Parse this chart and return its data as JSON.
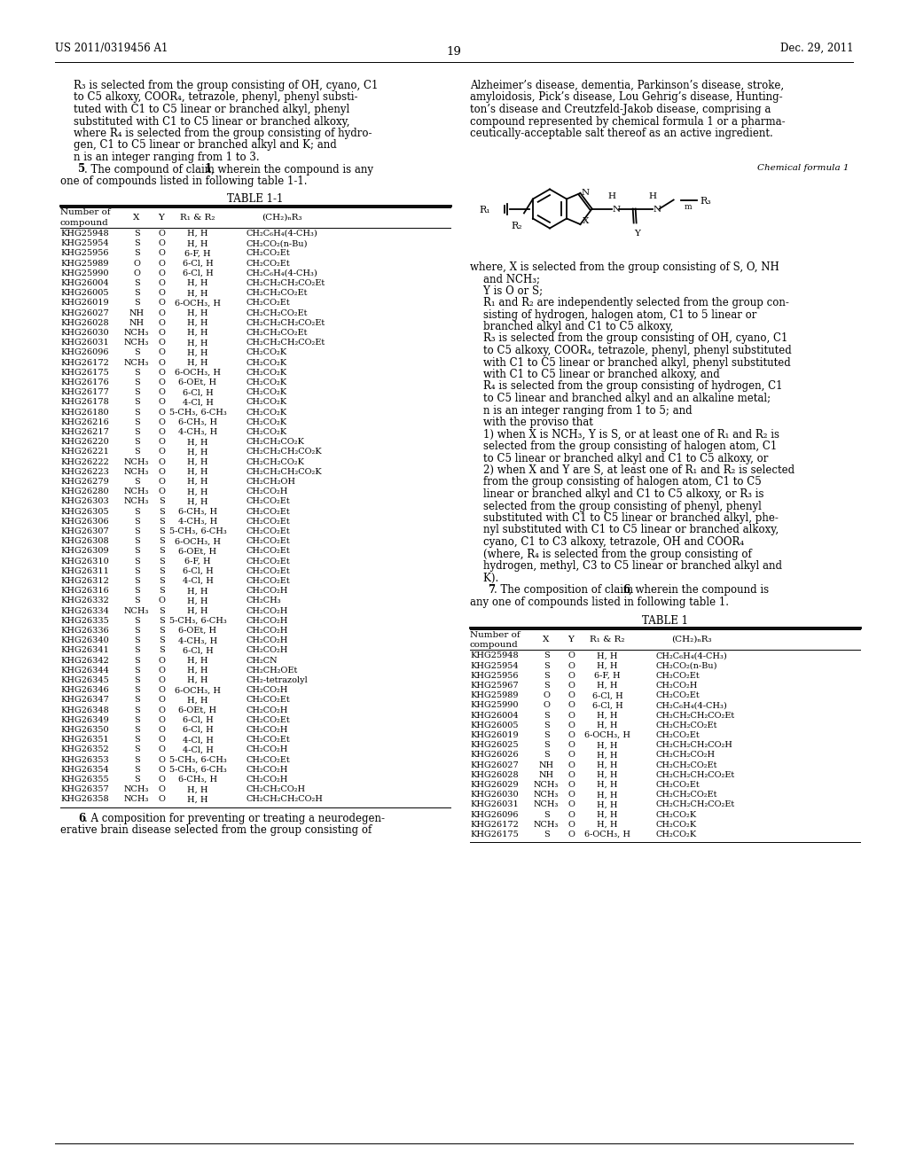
{
  "page_number": "19",
  "patent_number": "US 2011/0319456 A1",
  "date": "Dec. 29, 2011",
  "left_lines": [
    "    R₃ is selected from the group consisting of OH, cyano, C1",
    "    to C5 alkoxy, COOR₄, tetrazole, phenyl, phenyl substi-",
    "    tuted with C1 to C5 linear or branched alkyl, phenyl",
    "    substituted with C1 to C5 linear or branched alkoxy,",
    "    where R₄ is selected from the group consisting of hydro-",
    "    gen, C1 to C5 linear or branched alkyl and K; and",
    "    n is an integer ranging from 1 to 3.",
    "    5. The compound of claim 1, wherein the compound is any",
    "one of compounds listed in following table 1-1."
  ],
  "right_lines_top": [
    "Alzheimer’s disease, dementia, Parkinson’s disease, stroke,",
    "amyloidosis, Pick’s disease, Lou Gehrig’s disease, Hunting-",
    "ton’s disease and Creutzfeld-Jakob disease, comprising a",
    "compound represented by chemical formula 1 or a pharma-",
    "ceutically-acceptable salt thereof as an active ingredient."
  ],
  "right_desc_lines": [
    "where, X is selected from the group consisting of S, O, NH",
    "    and NCH₃;",
    "    Y is O or S;",
    "    R₁ and R₂ are independently selected from the group con-",
    "    sisting of hydrogen, halogen atom, C1 to 5 linear or",
    "    branched alkyl and C1 to C5 alkoxy,",
    "    R₃ is selected from the group consisting of OH, cyano, C1",
    "    to C5 alkoxy, COOR₄, tetrazole, phenyl, phenyl substituted",
    "    with C1 to C5 linear or branched alkyl, phenyl substituted",
    "    with C1 to C5 linear or branched alkoxy, and",
    "    R₄ is selected from the group consisting of hydrogen, C1",
    "    to C5 linear and branched alkyl and an alkaline metal;",
    "    n is an integer ranging from 1 to 5; and",
    "    with the proviso that",
    "    1) when X is NCH₃, Y is S, or at least one of R₁ and R₂ is",
    "    selected from the group consisting of halogen atom, C1",
    "    to C5 linear or branched alkyl and C1 to C5 alkoxy, or",
    "    2) when X and Y are S, at least one of R₁ and R₂ is selected",
    "    from the group consisting of halogen atom, C1 to C5",
    "    linear or branched alkyl and C1 to C5 alkoxy, or R₃ is",
    "    selected from the group consisting of phenyl, phenyl",
    "    substituted with C1 to C5 linear or branched alkyl, phe-",
    "    nyl substituted with C1 to C5 linear or branched alkoxy,",
    "    cyano, C1 to C3 alkoxy, tetrazole, OH and COOR₄",
    "    (where, R₄ is selected from the group consisting of",
    "    hydrogen, methyl, C3 to C5 linear or branched alkyl and",
    "    K).",
    "    7. The composition of claim 6, wherein the compound is",
    "any one of compounds listed in following table 1."
  ],
  "claim6_lines": [
    "    6. A composition for preventing or treating a neurodegen-",
    "erative brain disease selected from the group consisting of"
  ],
  "table1_data": [
    [
      "KHG25948",
      "S",
      "O",
      "H, H",
      "CH₂C₆H₄(4-CH₃)"
    ],
    [
      "KHG25954",
      "S",
      "O",
      "H, H",
      "CH₂CO₂(n-Bu)"
    ],
    [
      "KHG25956",
      "S",
      "O",
      "6-F, H",
      "CH₂CO₂Et"
    ],
    [
      "KHG25989",
      "O",
      "O",
      "6-Cl, H",
      "CH₂CO₂Et"
    ],
    [
      "KHG25990",
      "O",
      "O",
      "6-Cl, H",
      "CH₂C₆H₄(4-CH₃)"
    ],
    [
      "KHG26004",
      "S",
      "O",
      "H, H",
      "CH₂CH₂CH₂CO₂Et"
    ],
    [
      "KHG26005",
      "S",
      "O",
      "H, H",
      "CH₂CH₂CO₂Et"
    ],
    [
      "KHG26019",
      "S",
      "O",
      "6-OCH₃, H",
      "CH₂CO₂Et"
    ],
    [
      "KHG26027",
      "NH",
      "O",
      "H, H",
      "CH₂CH₂CO₂Et"
    ],
    [
      "KHG26028",
      "NH",
      "O",
      "H, H",
      "CH₂CH₂CH₂CO₂Et"
    ],
    [
      "KHG26030",
      "NCH₃",
      "O",
      "H, H",
      "CH₂CH₂CO₂Et"
    ],
    [
      "KHG26031",
      "NCH₃",
      "O",
      "H, H",
      "CH₂CH₂CH₂CO₂Et"
    ],
    [
      "KHG26096",
      "S",
      "O",
      "H, H",
      "CH₂CO₂K"
    ],
    [
      "KHG26172",
      "NCH₃",
      "O",
      "H, H",
      "CH₂CO₂K"
    ],
    [
      "KHG26175",
      "S",
      "O",
      "6-OCH₃, H",
      "CH₂CO₂K"
    ],
    [
      "KHG26176",
      "S",
      "O",
      "6-OEt, H",
      "CH₂CO₂K"
    ],
    [
      "KHG26177",
      "S",
      "O",
      "6-Cl, H",
      "CH₂CO₂K"
    ],
    [
      "KHG26178",
      "S",
      "O",
      "4-Cl, H",
      "CH₂CO₂K"
    ],
    [
      "KHG26180",
      "S",
      "O",
      "5-CH₃, 6-CH₃",
      "CH₂CO₂K"
    ],
    [
      "KHG26216",
      "S",
      "O",
      "6-CH₃, H",
      "CH₂CO₂K"
    ],
    [
      "KHG26217",
      "S",
      "O",
      "4-CH₃, H",
      "CH₂CO₂K"
    ],
    [
      "KHG26220",
      "S",
      "O",
      "H, H",
      "CH₂CH₂CO₂K"
    ],
    [
      "KHG26221",
      "S",
      "O",
      "H, H",
      "CH₂CH₂CH₂CO₂K"
    ],
    [
      "KHG26222",
      "NCH₃",
      "O",
      "H, H",
      "CH₂CH₂CO₂K"
    ],
    [
      "KHG26223",
      "NCH₃",
      "O",
      "H, H",
      "CH₂CH₂CH₂CO₂K"
    ],
    [
      "KHG26279",
      "S",
      "O",
      "H, H",
      "CH₂CH₂OH"
    ],
    [
      "KHG26280",
      "NCH₃",
      "O",
      "H, H",
      "CH₂CO₂H"
    ],
    [
      "KHG26303",
      "NCH₃",
      "S",
      "H, H",
      "CH₂CO₂Et"
    ],
    [
      "KHG26305",
      "S",
      "S",
      "6-CH₃, H",
      "CH₂CO₂Et"
    ],
    [
      "KHG26306",
      "S",
      "S",
      "4-CH₃, H",
      "CH₂CO₂Et"
    ],
    [
      "KHG26307",
      "S",
      "S",
      "5-CH₃, 6-CH₃",
      "CH₂CO₂Et"
    ],
    [
      "KHG26308",
      "S",
      "S",
      "6-OCH₃, H",
      "CH₂CO₂Et"
    ],
    [
      "KHG26309",
      "S",
      "S",
      "6-OEt, H",
      "CH₂CO₂Et"
    ],
    [
      "KHG26310",
      "S",
      "S",
      "6-F, H",
      "CH₂CO₂Et"
    ],
    [
      "KHG26311",
      "S",
      "S",
      "6-Cl, H",
      "CH₂CO₂Et"
    ],
    [
      "KHG26312",
      "S",
      "S",
      "4-Cl, H",
      "CH₂CO₂Et"
    ],
    [
      "KHG26316",
      "S",
      "S",
      "H, H",
      "CH₂CO₂H"
    ],
    [
      "KHG26332",
      "S",
      "O",
      "H, H",
      "CH₂CH₃"
    ],
    [
      "KHG26334",
      "NCH₃",
      "S",
      "H, H",
      "CH₂CO₂H"
    ],
    [
      "KHG26335",
      "S",
      "S",
      "5-CH₃, 6-CH₃",
      "CH₂CO₂H"
    ],
    [
      "KHG26336",
      "S",
      "S",
      "6-OEt, H",
      "CH₂CO₂H"
    ],
    [
      "KHG26340",
      "S",
      "S",
      "4-CH₃, H",
      "CH₂CO₂H"
    ],
    [
      "KHG26341",
      "S",
      "S",
      "6-Cl, H",
      "CH₂CO₂H"
    ],
    [
      "KHG26342",
      "S",
      "O",
      "H, H",
      "CH₂CN"
    ],
    [
      "KHG26344",
      "S",
      "O",
      "H, H",
      "CH₂CH₂OEt"
    ],
    [
      "KHG26345",
      "S",
      "O",
      "H, H",
      "CH₂-tetrazolyl"
    ],
    [
      "KHG26346",
      "S",
      "O",
      "6-OCH₃, H",
      "CH₂CO₂H"
    ],
    [
      "KHG26347",
      "S",
      "O",
      "H, H",
      "CH₂CO₂Et"
    ],
    [
      "KHG26348",
      "S",
      "O",
      "6-OEt, H",
      "CH₂CO₂H"
    ],
    [
      "KHG26349",
      "S",
      "O",
      "6-Cl, H",
      "CH₂CO₂Et"
    ],
    [
      "KHG26350",
      "S",
      "O",
      "6-Cl, H",
      "CH₂CO₂H"
    ],
    [
      "KHG26351",
      "S",
      "O",
      "4-Cl, H",
      "CH₂CO₂Et"
    ],
    [
      "KHG26352",
      "S",
      "O",
      "4-Cl, H",
      "CH₂CO₂H"
    ],
    [
      "KHG26353",
      "S",
      "O",
      "5-CH₃, 6-CH₃",
      "CH₂CO₂Et"
    ],
    [
      "KHG26354",
      "S",
      "O",
      "5-CH₃, 6-CH₃",
      "CH₂CO₂H"
    ],
    [
      "KHG26355",
      "S",
      "O",
      "6-CH₃, H",
      "CH₂CO₂H"
    ],
    [
      "KHG26357",
      "NCH₃",
      "O",
      "H, H",
      "CH₂CH₂CO₂H"
    ],
    [
      "KHG26358",
      "NCH₃",
      "O",
      "H, H",
      "CH₂CH₂CH₂CO₂H"
    ]
  ],
  "table2_data": [
    [
      "KHG25948",
      "S",
      "O",
      "H, H",
      "CH₂C₆H₄(4-CH₃)"
    ],
    [
      "KHG25954",
      "S",
      "O",
      "H, H",
      "CH₂CO₂(n-Bu)"
    ],
    [
      "KHG25956",
      "S",
      "O",
      "6-F, H",
      "CH₂CO₂Et"
    ],
    [
      "KHG25967",
      "S",
      "O",
      "H, H",
      "CH₂CO₂H"
    ],
    [
      "KHG25989",
      "O",
      "O",
      "6-Cl, H",
      "CH₂CO₂Et"
    ],
    [
      "KHG25990",
      "O",
      "O",
      "6-Cl, H",
      "CH₂C₆H₄(4-CH₃)"
    ],
    [
      "KHG26004",
      "S",
      "O",
      "H, H",
      "CH₂CH₂CH₂CO₂Et"
    ],
    [
      "KHG26005",
      "S",
      "O",
      "H, H",
      "CH₂CH₂CO₂Et"
    ],
    [
      "KHG26019",
      "S",
      "O",
      "6-OCH₃, H",
      "CH₂CO₂Et"
    ],
    [
      "KHG26025",
      "S",
      "O",
      "H, H",
      "CH₂CH₂CH₂CO₂H"
    ],
    [
      "KHG26026",
      "S",
      "O",
      "H, H",
      "CH₂CH₂CO₂H"
    ],
    [
      "KHG26027",
      "NH",
      "O",
      "H, H",
      "CH₂CH₂CO₂Et"
    ],
    [
      "KHG26028",
      "NH",
      "O",
      "H, H",
      "CH₂CH₂CH₂CO₂Et"
    ],
    [
      "KHG26029",
      "NCH₃",
      "O",
      "H, H",
      "CH₂CO₂Et"
    ],
    [
      "KHG26030",
      "NCH₃",
      "O",
      "H, H",
      "CH₂CH₂CO₂Et"
    ],
    [
      "KHG26031",
      "NCH₃",
      "O",
      "H, H",
      "CH₂CH₂CH₂CO₂Et"
    ],
    [
      "KHG26096",
      "S",
      "O",
      "H, H",
      "CH₂CO₂K"
    ],
    [
      "KHG26172",
      "NCH₃",
      "O",
      "H, H",
      "CH₂CO₂K"
    ],
    [
      "KHG26175",
      "S",
      "O",
      "6-OCH₃, H",
      "CH₂CO₂K"
    ]
  ]
}
